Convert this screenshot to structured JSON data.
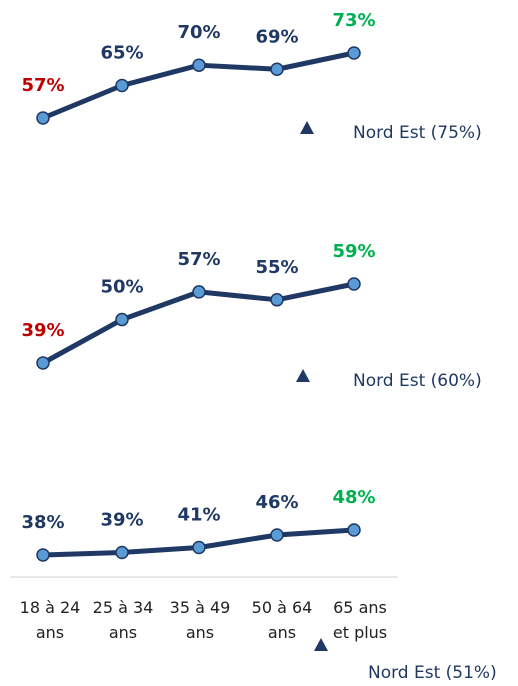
{
  "chart_data": [
    {
      "type": "line",
      "series": [
        {
          "color": "#1f3864",
          "marker_color": "#5b9bd5",
          "values": [
            57,
            65,
            70,
            69,
            73
          ],
          "value_labels": [
            "57%",
            "65%",
            "70%",
            "69%",
            "73%"
          ],
          "label_colors": [
            "#c00000",
            "#1f3864",
            "#1f3864",
            "#1f3864",
            "#00b050"
          ]
        }
      ],
      "annotation": "Nord Est (75%)"
    },
    {
      "type": "line",
      "series": [
        {
          "color": "#1f3864",
          "marker_color": "#5b9bd5",
          "values": [
            39,
            50,
            57,
            55,
            59
          ],
          "value_labels": [
            "39%",
            "50%",
            "57%",
            "55%",
            "59%"
          ],
          "label_colors": [
            "#c00000",
            "#1f3864",
            "#1f3864",
            "#1f3864",
            "#00b050"
          ]
        }
      ],
      "annotation": "Nord Est (60%)"
    },
    {
      "type": "line",
      "categories": [
        "18 à 24\nans",
        "25 à 34\nans",
        "35 à 49\nans",
        "50 à 64\nans",
        "65 ans\net plus"
      ],
      "series": [
        {
          "color": "#1f3864",
          "marker_color": "#5b9bd5",
          "values": [
            38,
            39,
            41,
            46,
            48
          ],
          "value_labels": [
            "38%",
            "39%",
            "41%",
            "46%",
            "48%"
          ],
          "label_colors": [
            "#1f3864",
            "#1f3864",
            "#1f3864",
            "#1f3864",
            "#00b050"
          ]
        }
      ],
      "annotation": "Nord Est (51%)"
    }
  ]
}
